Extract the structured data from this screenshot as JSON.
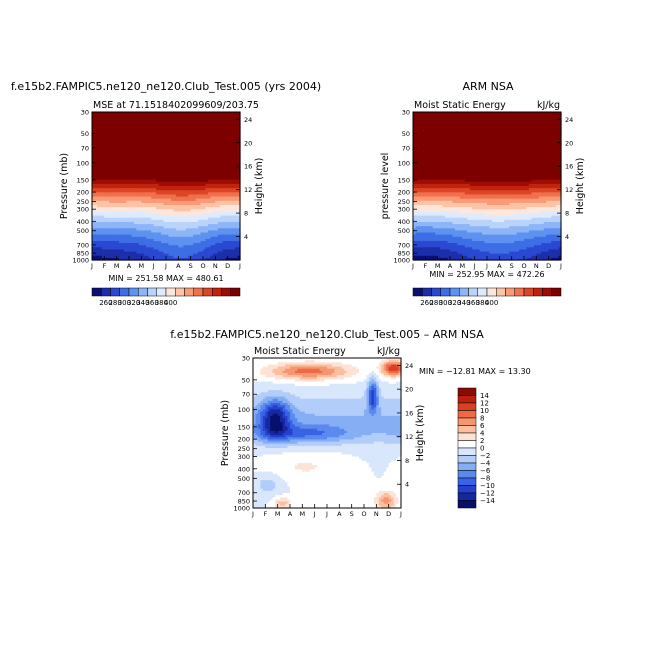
{
  "chart_data": [
    {
      "type": "heatmap",
      "title": "f.e15b2.FAMPIC5.ne120_ne120.Club_Test.005 (yrs 2004)",
      "subtitle_left": "MSE at 71.1518402099609/203.75",
      "subtitle_right": "",
      "ylabel": "Pressure (mb)",
      "ylabel_right": "Height (km)",
      "stats": "MIN = 251.58  MAX = 480.61",
      "x_ticks": [
        "J",
        "F",
        "M",
        "A",
        "M",
        "J",
        "J",
        "A",
        "S",
        "O",
        "N",
        "D",
        "J"
      ],
      "y_ticks": [
        "30",
        "50",
        "70",
        "100",
        "150",
        "200",
        "250",
        "300",
        "400",
        "500",
        "700",
        "850",
        "1000"
      ],
      "y_ticks_right": [
        "24",
        "20",
        "16",
        "12",
        "8",
        "4"
      ],
      "colorbar_labels": [
        "260",
        "280",
        "300",
        "320",
        "340",
        "360",
        "380",
        "400"
      ]
    },
    {
      "type": "heatmap",
      "title": "ARM NSA",
      "subtitle_left": "Moist Static Energy",
      "subtitle_right": "kJ/kg",
      "ylabel": "pressure  level",
      "ylabel_right": "Height (km)",
      "stats": "MIN = 252.95  MAX = 472.26",
      "x_ticks": [
        "J",
        "F",
        "M",
        "A",
        "M",
        "J",
        "J",
        "A",
        "S",
        "O",
        "N",
        "D",
        "J"
      ],
      "y_ticks": [
        "30",
        "50",
        "70",
        "100",
        "150",
        "200",
        "250",
        "300",
        "400",
        "500",
        "700",
        "850",
        "1000"
      ],
      "y_ticks_right": [
        "24",
        "20",
        "16",
        "12",
        "8",
        "4"
      ],
      "colorbar_labels": [
        "260",
        "280",
        "300",
        "320",
        "340",
        "360",
        "380",
        "400"
      ]
    },
    {
      "type": "heatmap",
      "title": "f.e15b2.FAMPIC5.ne120_ne120.Club_Test.005 – ARM NSA",
      "subtitle_left": "Moist Static Energy",
      "subtitle_right": "kJ/kg",
      "ylabel": "Pressure (mb)",
      "ylabel_right": "Height (km)",
      "stats": "MIN = −12.81  MAX =   13.30",
      "x_ticks": [
        "J",
        "F",
        "M",
        "A",
        "M",
        "J",
        "J",
        "A",
        "S",
        "O",
        "N",
        "D",
        "J"
      ],
      "y_ticks": [
        "30",
        "50",
        "70",
        "100",
        "150",
        "200",
        "250",
        "300",
        "400",
        "500",
        "700",
        "850",
        "1000"
      ],
      "y_ticks_right": [
        "24",
        "20",
        "16",
        "12",
        "8",
        "4"
      ],
      "colorbar_labels": [
        "14",
        "12",
        "10",
        "8",
        "6",
        "4",
        "2",
        "0",
        "−2",
        "−4",
        "−6",
        "−8",
        "−10",
        "−12",
        "−14"
      ]
    }
  ],
  "colors": {
    "mse_scale": [
      "#0a0f74",
      "#1c2ea8",
      "#2a48d2",
      "#3d6ee6",
      "#5f92f0",
      "#8eb6f7",
      "#bad3fa",
      "#dfeafc",
      "#fde7dc",
      "#fcc3a6",
      "#f89b76",
      "#f1704d",
      "#dc4627",
      "#c1230f",
      "#9f0c05",
      "#7d0000"
    ],
    "diff_scale": [
      "#08106e",
      "#1628a0",
      "#2440cc",
      "#3a62e4",
      "#5b8aef",
      "#86aef5",
      "#b2cdfa",
      "#d9e7fc",
      "#ffffff",
      "#fde3d5",
      "#fbbf9f",
      "#f69670",
      "#ee6a47",
      "#d84224",
      "#bb200e",
      "#8c0a04"
    ]
  }
}
